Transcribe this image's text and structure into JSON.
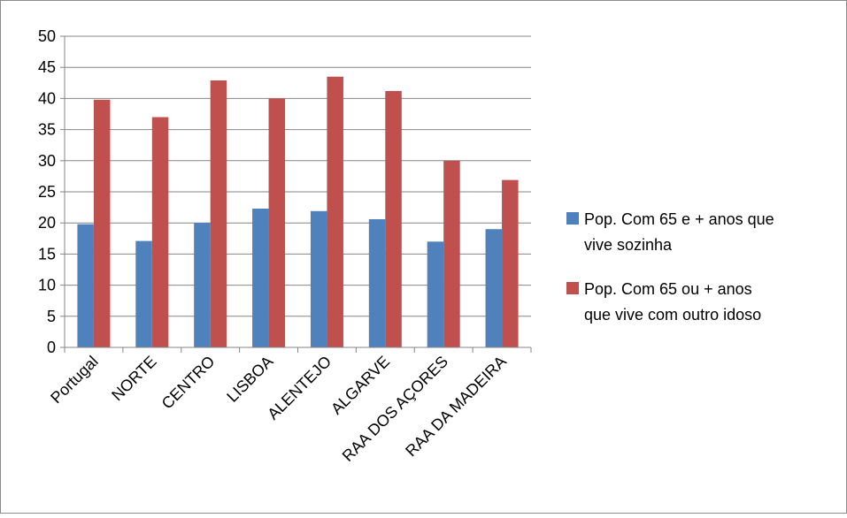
{
  "chart_data": {
    "type": "bar",
    "title": "",
    "xlabel": "",
    "ylabel": "",
    "ylim": [
      0,
      50
    ],
    "yticks": [
      0,
      5,
      10,
      15,
      20,
      25,
      30,
      35,
      40,
      45,
      50
    ],
    "grid": true,
    "legend_position": "right",
    "categories": [
      "Portugal",
      "NORTE",
      "CENTRO",
      "LISBOA",
      "ALENTEJO",
      "ALGARVE",
      "RAA DOS AÇORES",
      "RAA DA MADEIRA"
    ],
    "series": [
      {
        "name": "Pop. Com 65 e + anos que vive sozinha",
        "legend_lines": [
          "Pop. Com 65 e + anos que",
          "vive sozinha"
        ],
        "color": "#4f81bd",
        "values": [
          19.8,
          17.1,
          20.0,
          22.3,
          21.9,
          20.6,
          17.0,
          19.0
        ]
      },
      {
        "name": "Pop. Com 65 ou + anos que vive com outro idoso",
        "legend_lines": [
          "Pop. Com 65 ou + anos",
          "que vive com outro idoso"
        ],
        "color": "#c0504d",
        "values": [
          39.8,
          37.0,
          42.9,
          40.0,
          43.5,
          41.2,
          30.0,
          26.9
        ]
      }
    ]
  }
}
